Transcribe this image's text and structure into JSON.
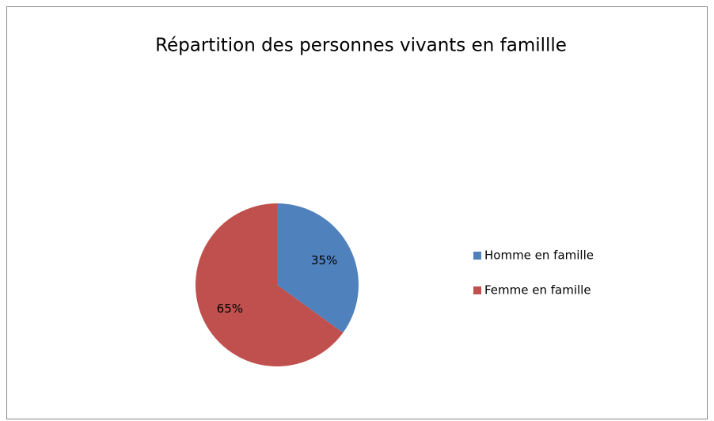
{
  "chart_data": {
    "type": "pie",
    "title": "Répartition des personnes vivants en famillle",
    "categories": [
      "Homme en famille",
      "Femme en famille"
    ],
    "values": [
      35,
      65
    ],
    "value_labels": [
      "35%",
      "65%"
    ],
    "colors": [
      "#4f81bd",
      "#c0504d"
    ],
    "legend": "right"
  }
}
